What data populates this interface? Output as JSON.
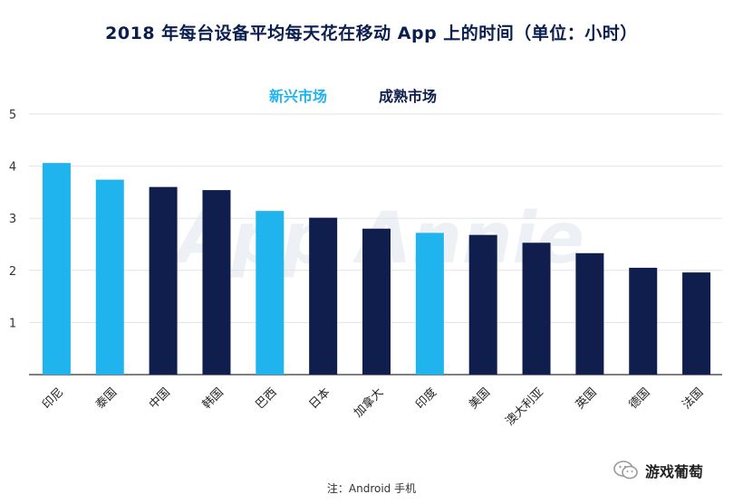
{
  "title": "2018 年每台设备平均每天花在移动 App 上的时间（单位：小时）",
  "legend": {
    "emerging": "新兴市场",
    "mature": "成熟市场"
  },
  "note": "注：Android 手机",
  "watermark": "App Annie",
  "brand": {
    "name": "游戏葡萄",
    "icon": "wechat-icon"
  },
  "colors": {
    "emerging": "#1fb4ee",
    "mature": "#0f1e4d",
    "grid": "#e3e3e3",
    "axis": "#333333"
  },
  "chart_data": {
    "type": "bar",
    "title": "2018 年每台设备平均每天花在移动 App 上的时间（单位：小时）",
    "xlabel": "",
    "ylabel": "",
    "ylim": [
      0,
      5
    ],
    "yticks": [
      1,
      2,
      3,
      4,
      5
    ],
    "grid": true,
    "legend_position": "top",
    "categories": [
      "印尼",
      "泰国",
      "中国",
      "韩国",
      "巴西",
      "日本",
      "加拿大",
      "印度",
      "美国",
      "澳大利亚",
      "英国",
      "德国",
      "法国"
    ],
    "values": [
      4.06,
      3.74,
      3.6,
      3.54,
      3.14,
      3.01,
      2.8,
      2.72,
      2.68,
      2.53,
      2.33,
      2.05,
      1.96
    ],
    "groups": [
      "新兴市场",
      "新兴市场",
      "成熟市场",
      "成熟市场",
      "新兴市场",
      "成熟市场",
      "成熟市场",
      "新兴市场",
      "成熟市场",
      "成熟市场",
      "成熟市场",
      "成熟市场",
      "成熟市场"
    ]
  }
}
